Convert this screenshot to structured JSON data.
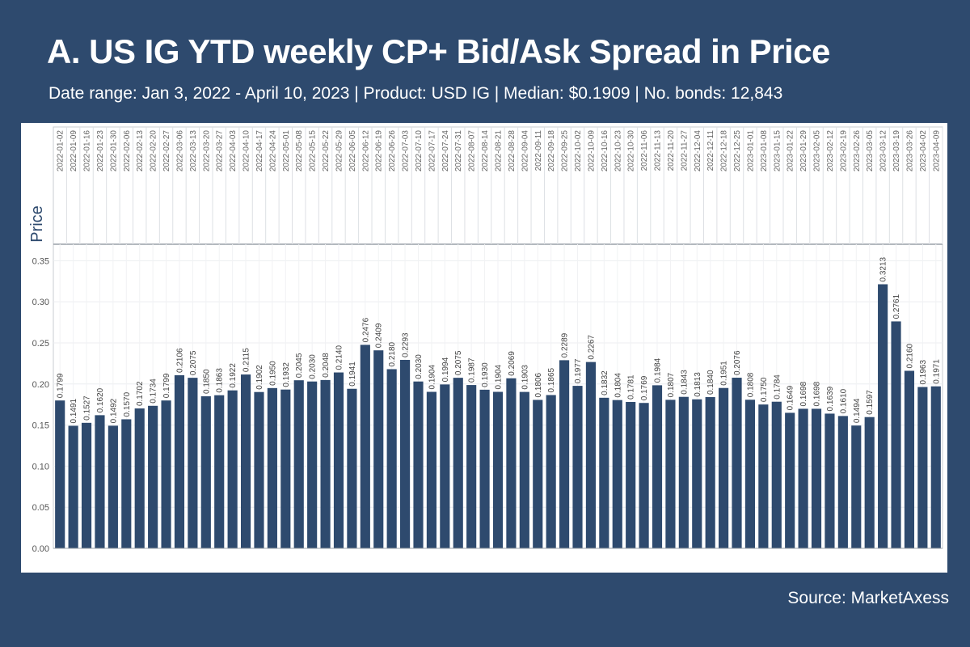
{
  "header": {
    "title": "A. US IG YTD weekly CP+ Bid/Ask Spread in Price",
    "subtitle": "Date range: Jan 3, 2022 - April 10, 2023 | Product: USD IG | Median: $0.1909  | No. bonds: 12,843"
  },
  "footer": {
    "source": "Source: MarketAxess"
  },
  "colors": {
    "background": "#2e4a6e",
    "bar": "#2e4a6e",
    "panel": "#ffffff"
  },
  "chart_data": {
    "type": "bar",
    "ylabel": "Price",
    "ylim": [
      0,
      0.37
    ],
    "yticks": [
      "0.00",
      "0.05",
      "0.10",
      "0.15",
      "0.20",
      "0.25",
      "0.30",
      "0.35"
    ],
    "grid": true,
    "categories": [
      "2022-01-02",
      "2022-01-09",
      "2022-01-16",
      "2022-01-23",
      "2022-01-30",
      "2022-02-06",
      "2022-02-13",
      "2022-02-20",
      "2022-02-27",
      "2022-03-06",
      "2022-03-13",
      "2022-03-20",
      "2022-03-27",
      "2022-04-03",
      "2022-04-10",
      "2022-04-17",
      "2022-04-24",
      "2022-05-01",
      "2022-05-08",
      "2022-05-15",
      "2022-05-22",
      "2022-05-29",
      "2022-06-05",
      "2022-06-12",
      "2022-06-19",
      "2022-06-26",
      "2022-07-03",
      "2022-07-10",
      "2022-07-17",
      "2022-07-24",
      "2022-07-31",
      "2022-08-07",
      "2022-08-14",
      "2022-08-21",
      "2022-08-28",
      "2022-09-04",
      "2022-09-11",
      "2022-09-18",
      "2022-09-25",
      "2022-10-02",
      "2022-10-09",
      "2022-10-16",
      "2022-10-23",
      "2022-10-30",
      "2022-11-06",
      "2022-11-13",
      "2022-11-20",
      "2022-11-27",
      "2022-12-04",
      "2022-12-11",
      "2022-12-18",
      "2022-12-25",
      "2023-01-01",
      "2023-01-08",
      "2023-01-15",
      "2023-01-22",
      "2023-01-29",
      "2023-02-05",
      "2023-02-12",
      "2023-02-19",
      "2023-02-26",
      "2023-03-05",
      "2023-03-12",
      "2023-03-19",
      "2023-03-26",
      "2023-04-02",
      "2023-04-09"
    ],
    "values": [
      0.1799,
      0.1491,
      0.1527,
      0.162,
      0.1492,
      0.157,
      0.1702,
      0.1734,
      0.1799,
      0.2106,
      0.2075,
      0.185,
      0.1863,
      0.1922,
      0.2115,
      0.1902,
      0.195,
      0.1932,
      0.2045,
      0.203,
      0.2048,
      0.214,
      0.1941,
      0.2476,
      0.2409,
      0.218,
      0.2293,
      0.203,
      0.1904,
      0.1994,
      0.2075,
      0.1987,
      0.193,
      0.1904,
      0.2069,
      0.1903,
      0.1806,
      0.1865,
      0.2289,
      0.1977,
      0.2267,
      0.1832,
      0.1804,
      0.1781,
      0.1769,
      0.1984,
      0.1807,
      0.1843,
      0.1813,
      0.184,
      0.1951,
      0.2076,
      0.1808,
      0.175,
      0.1784,
      0.1649,
      0.1698,
      0.1698,
      0.1639,
      0.161,
      0.1494,
      0.1597,
      0.3213,
      0.2761,
      0.216,
      0.1963,
      0.1971
    ]
  }
}
